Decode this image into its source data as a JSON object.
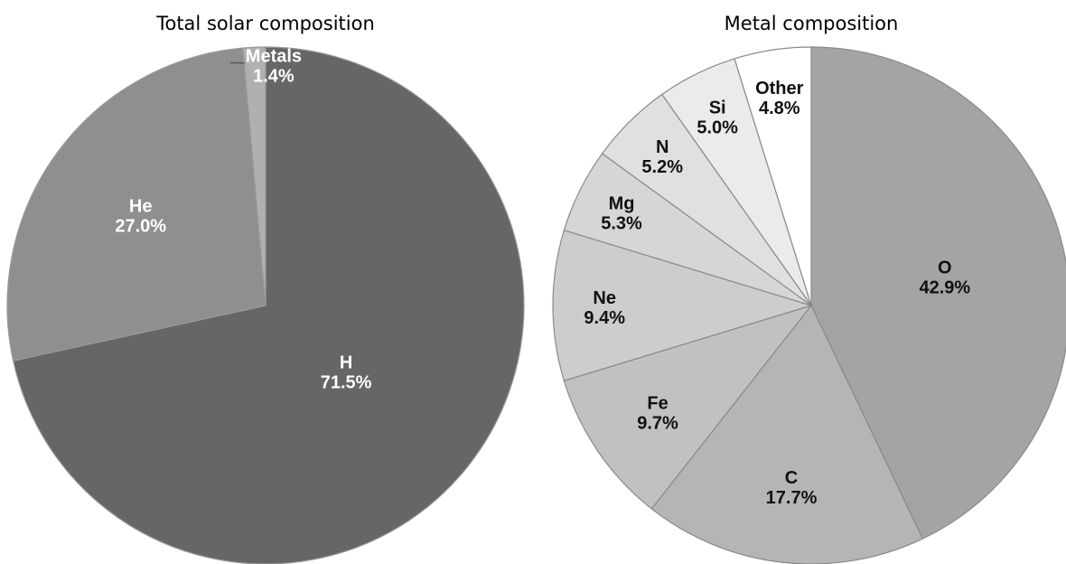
{
  "chart_data": [
    {
      "type": "pie",
      "title": "Total solar composition",
      "slices": [
        {
          "label": "H",
          "value": 71.5,
          "value_label": "71.5%",
          "color": "#666666",
          "text_color": "#ffffff"
        },
        {
          "label": "He",
          "value": 27.0,
          "value_label": "27.0%",
          "color": "#8f8f8f",
          "text_color": "#ffffff"
        },
        {
          "label": "Metals",
          "value": 1.4,
          "value_label": "1.4%",
          "color": "#b0b0b0",
          "text_color": "#ffffff"
        }
      ],
      "start": "12 o'clock",
      "direction": "clockwise",
      "slice_border_color": "#9a9a9a"
    },
    {
      "type": "pie",
      "title": "Metal composition",
      "slices": [
        {
          "label": "O",
          "value": 42.9,
          "value_label": "42.9%",
          "color": "#a4a4a4",
          "text_color": "#111111"
        },
        {
          "label": "C",
          "value": 17.7,
          "value_label": "17.7%",
          "color": "#b5b5b5",
          "text_color": "#111111"
        },
        {
          "label": "Fe",
          "value": 9.7,
          "value_label": "9.7%",
          "color": "#c1c1c1",
          "text_color": "#111111"
        },
        {
          "label": "Ne",
          "value": 9.4,
          "value_label": "9.4%",
          "color": "#cdcdcd",
          "text_color": "#111111"
        },
        {
          "label": "Mg",
          "value": 5.3,
          "value_label": "5.3%",
          "color": "#d6d6d6",
          "text_color": "#111111"
        },
        {
          "label": "N",
          "value": 5.2,
          "value_label": "5.2%",
          "color": "#e0e0e0",
          "text_color": "#111111"
        },
        {
          "label": "Si",
          "value": 5.0,
          "value_label": "5.0%",
          "color": "#ebebeb",
          "text_color": "#111111"
        },
        {
          "label": "Other",
          "value": 4.8,
          "value_label": "4.8%",
          "color": "#ffffff",
          "text_color": "#111111"
        }
      ],
      "start": "12 o'clock",
      "direction": "clockwise",
      "slice_border_color": "#8a8a8a"
    }
  ]
}
